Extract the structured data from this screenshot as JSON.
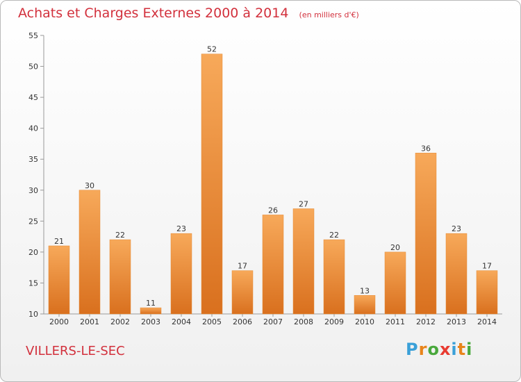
{
  "header": {
    "title": "Achats et Charges Externes 2000 à 2014",
    "unit": "(en milliers d'€)"
  },
  "footer": {
    "city": "VILLERS-LE-SEC",
    "logo": [
      "P",
      "r",
      "o",
      "x",
      "i",
      "t",
      "i"
    ]
  },
  "colors": {
    "title": "#d2303c",
    "bar_light": "#f7a95a",
    "bar_dark": "#d9701e",
    "logo": [
      "#3aa0d8",
      "#e8841a",
      "#49a83c",
      "#e83a30",
      "#3aa0d8",
      "#e8841a",
      "#49a83c"
    ]
  },
  "chart_data": {
    "type": "bar",
    "categories": [
      "2000",
      "2001",
      "2002",
      "2003",
      "2004",
      "2005",
      "2006",
      "2007",
      "2008",
      "2009",
      "2010",
      "2011",
      "2012",
      "2013",
      "2014"
    ],
    "values": [
      21,
      30,
      22,
      11,
      23,
      52,
      17,
      26,
      27,
      22,
      13,
      20,
      36,
      23,
      17
    ],
    "ylim": [
      10,
      55
    ],
    "yticks": [
      10,
      15,
      20,
      25,
      30,
      35,
      40,
      45,
      50,
      55
    ],
    "grid": false,
    "data_labels": true
  }
}
